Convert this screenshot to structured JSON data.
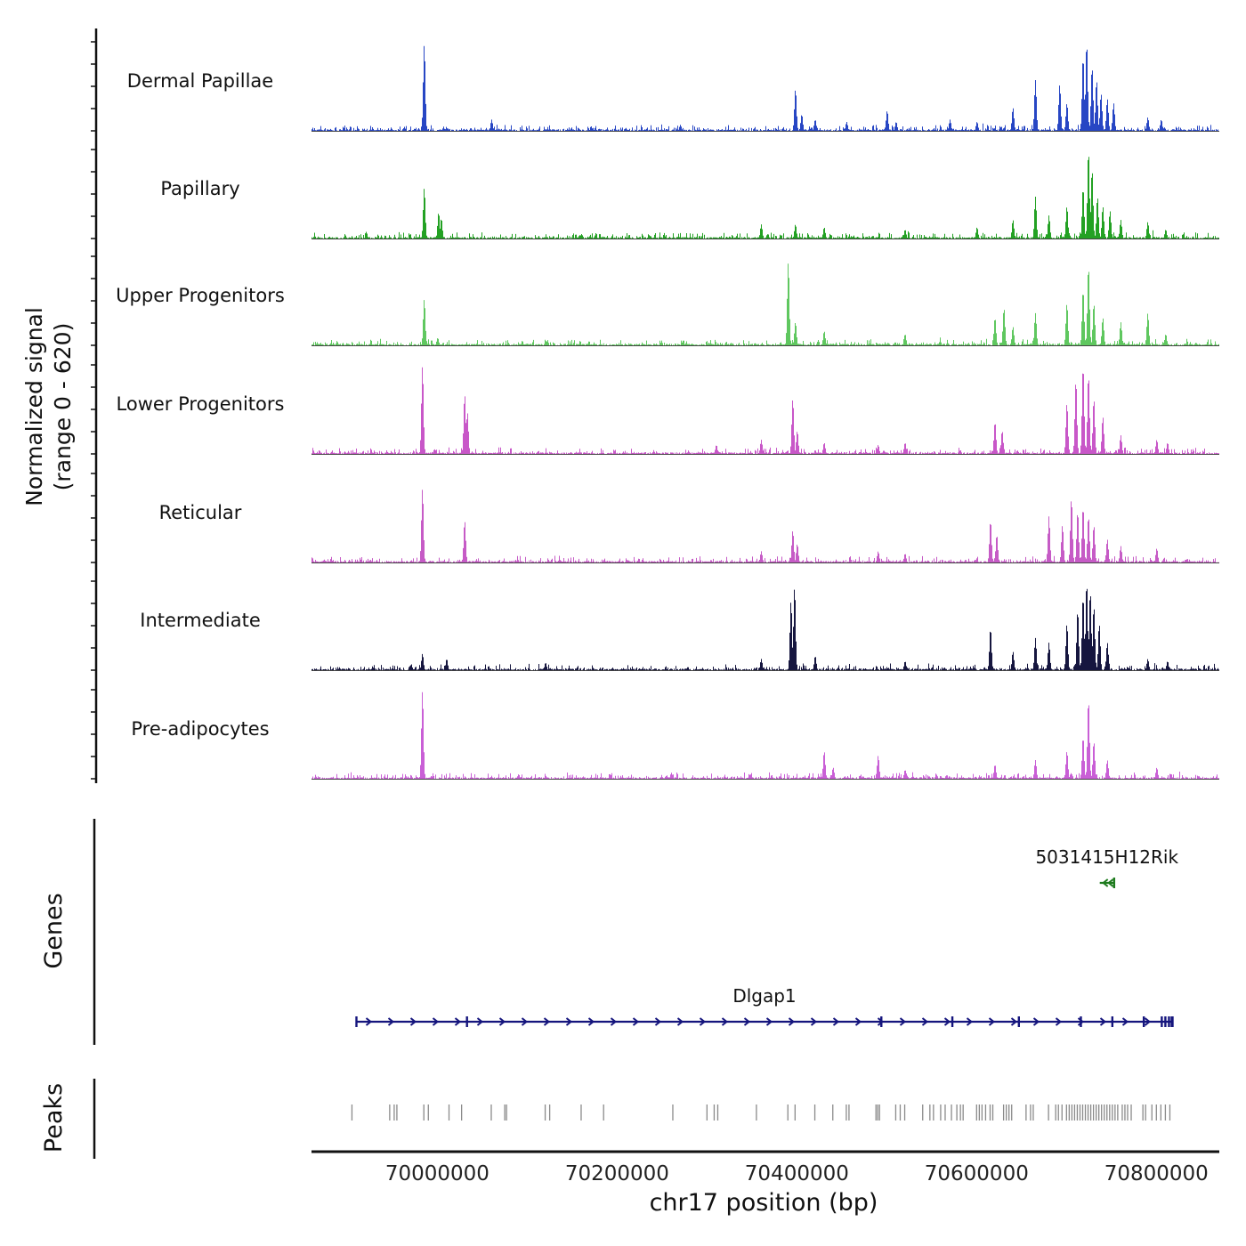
{
  "figure": {
    "y_axis_label_line1": "Normalized signal",
    "y_axis_label_line2": "(range 0 - 620)",
    "x_axis_title": "chr17 position (bp)",
    "genes_label": "Genes",
    "peaks_label": "Peaks"
  },
  "chart_data": {
    "type": "area",
    "title": "",
    "region": {
      "chrom": "chr17",
      "start": 69860000,
      "end": 70870000
    },
    "signal_range": [
      0,
      620
    ],
    "x_ticks": [
      70000000,
      70200000,
      70400000,
      70600000,
      70800000
    ],
    "tracks": [
      {
        "label": "Dermal Papillae",
        "color": "#2746c4",
        "peaks": [
          [
            69985000,
            580
          ],
          [
            70060000,
            75
          ],
          [
            70270000,
            40
          ],
          [
            70398000,
            280
          ],
          [
            70405000,
            110
          ],
          [
            70420000,
            75
          ],
          [
            70455000,
            60
          ],
          [
            70500000,
            135
          ],
          [
            70510000,
            60
          ],
          [
            70570000,
            75
          ],
          [
            70600000,
            60
          ],
          [
            70640000,
            155
          ],
          [
            70665000,
            340
          ],
          [
            70692000,
            310
          ],
          [
            70700000,
            185
          ],
          [
            70718000,
            495
          ],
          [
            70722000,
            590
          ],
          [
            70728000,
            430
          ],
          [
            70733000,
            340
          ],
          [
            70738000,
            250
          ],
          [
            70745000,
            215
          ],
          [
            70752000,
            185
          ],
          [
            70790000,
            90
          ],
          [
            70805000,
            75
          ]
        ]
      },
      {
        "label": "Papillary",
        "color": "#23a123",
        "peaks": [
          [
            69985000,
            340
          ],
          [
            70001000,
            175
          ],
          [
            70004000,
            135
          ],
          [
            70160000,
            30
          ],
          [
            70360000,
            95
          ],
          [
            70398000,
            95
          ],
          [
            70430000,
            75
          ],
          [
            70520000,
            60
          ],
          [
            70600000,
            75
          ],
          [
            70640000,
            125
          ],
          [
            70665000,
            280
          ],
          [
            70680000,
            155
          ],
          [
            70700000,
            215
          ],
          [
            70718000,
            340
          ],
          [
            70724000,
            590
          ],
          [
            70728000,
            465
          ],
          [
            70734000,
            280
          ],
          [
            70740000,
            215
          ],
          [
            70748000,
            185
          ],
          [
            70760000,
            125
          ],
          [
            70790000,
            110
          ],
          [
            70810000,
            60
          ]
        ]
      },
      {
        "label": "Upper Progenitors",
        "color": "#5fc75f",
        "peaks": [
          [
            69985000,
            310
          ],
          [
            70000000,
            50
          ],
          [
            70390000,
            560
          ],
          [
            70398000,
            155
          ],
          [
            70430000,
            95
          ],
          [
            70520000,
            75
          ],
          [
            70620000,
            185
          ],
          [
            70630000,
            250
          ],
          [
            70640000,
            125
          ],
          [
            70665000,
            215
          ],
          [
            70700000,
            280
          ],
          [
            70718000,
            370
          ],
          [
            70724000,
            530
          ],
          [
            70730000,
            280
          ],
          [
            70740000,
            185
          ],
          [
            70760000,
            155
          ],
          [
            70790000,
            215
          ],
          [
            70810000,
            75
          ]
        ]
      },
      {
        "label": "Lower Progenitors",
        "color": "#c857c8",
        "peaks": [
          [
            69983000,
            590
          ],
          [
            70030000,
            400
          ],
          [
            70033000,
            280
          ],
          [
            70310000,
            60
          ],
          [
            70360000,
            95
          ],
          [
            70395000,
            370
          ],
          [
            70400000,
            155
          ],
          [
            70430000,
            75
          ],
          [
            70490000,
            60
          ],
          [
            70520000,
            75
          ],
          [
            70620000,
            215
          ],
          [
            70628000,
            155
          ],
          [
            70700000,
            340
          ],
          [
            70710000,
            495
          ],
          [
            70718000,
            590
          ],
          [
            70724000,
            530
          ],
          [
            70730000,
            370
          ],
          [
            70740000,
            250
          ],
          [
            70760000,
            125
          ],
          [
            70800000,
            95
          ],
          [
            70812000,
            75
          ]
        ]
      },
      {
        "label": "Reticular",
        "color": "#c65bc6",
        "peaks": [
          [
            69983000,
            495
          ],
          [
            70030000,
            280
          ],
          [
            70360000,
            75
          ],
          [
            70395000,
            215
          ],
          [
            70400000,
            125
          ],
          [
            70490000,
            75
          ],
          [
            70520000,
            60
          ],
          [
            70615000,
            280
          ],
          [
            70622000,
            185
          ],
          [
            70680000,
            310
          ],
          [
            70695000,
            250
          ],
          [
            70705000,
            430
          ],
          [
            70712000,
            340
          ],
          [
            70718000,
            370
          ],
          [
            70724000,
            310
          ],
          [
            70730000,
            250
          ],
          [
            70745000,
            155
          ],
          [
            70760000,
            110
          ],
          [
            70800000,
            95
          ]
        ]
      },
      {
        "label": "Intermediate",
        "color": "#16163f",
        "peaks": [
          [
            69983000,
            110
          ],
          [
            70010000,
            75
          ],
          [
            70120000,
            50
          ],
          [
            70360000,
            75
          ],
          [
            70393000,
            465
          ],
          [
            70397000,
            560
          ],
          [
            70420000,
            95
          ],
          [
            70520000,
            60
          ],
          [
            70615000,
            280
          ],
          [
            70640000,
            125
          ],
          [
            70665000,
            215
          ],
          [
            70680000,
            185
          ],
          [
            70700000,
            310
          ],
          [
            70712000,
            400
          ],
          [
            70718000,
            495
          ],
          [
            70722000,
            590
          ],
          [
            70726000,
            530
          ],
          [
            70730000,
            430
          ],
          [
            70736000,
            310
          ],
          [
            70745000,
            185
          ],
          [
            70790000,
            75
          ],
          [
            70812000,
            60
          ]
        ]
      },
      {
        "label": "Pre-adipocytes",
        "color": "#c95fd6",
        "peaks": [
          [
            69983000,
            590
          ],
          [
            70090000,
            30
          ],
          [
            70260000,
            40
          ],
          [
            70430000,
            185
          ],
          [
            70440000,
            75
          ],
          [
            70490000,
            155
          ],
          [
            70520000,
            60
          ],
          [
            70620000,
            95
          ],
          [
            70665000,
            125
          ],
          [
            70700000,
            185
          ],
          [
            70718000,
            280
          ],
          [
            70724000,
            530
          ],
          [
            70730000,
            250
          ],
          [
            70745000,
            125
          ],
          [
            70800000,
            75
          ]
        ]
      }
    ],
    "genes": [
      {
        "name": "5031415H12Rik",
        "start": 70737000,
        "end": 70753000,
        "strand": "-",
        "color": "#1e7b1e",
        "exons": [
          70753000
        ]
      },
      {
        "name": "Dlgap1",
        "start": 69910000,
        "end": 70818000,
        "strand": "+",
        "color": "#15157d",
        "exons": [
          69910000,
          70033000,
          70494000,
          70573000,
          70647000,
          70716000,
          70751000,
          70786000,
          70806000,
          70810000,
          70814000,
          70817000,
          70818000
        ]
      }
    ],
    "peaks_track": [
      69905000,
      69947000,
      69952000,
      69955000,
      69985000,
      69990000,
      70013000,
      70027000,
      70060000,
      70075000,
      70077000,
      70120000,
      70125000,
      70160000,
      70185000,
      70262000,
      70300000,
      70308000,
      70312000,
      70355000,
      70390000,
      70398000,
      70420000,
      70440000,
      70455000,
      70458000,
      70488000,
      70490000,
      70492000,
      70510000,
      70515000,
      70520000,
      70540000,
      70548000,
      70552000,
      70560000,
      70565000,
      70572000,
      70578000,
      70582000,
      70585000,
      70600000,
      70603000,
      70606000,
      70610000,
      70615000,
      70618000,
      70630000,
      70633000,
      70636000,
      70639000,
      70655000,
      70660000,
      70663000,
      70680000,
      70688000,
      70691000,
      70695000,
      70700000,
      70703000,
      70706000,
      70709000,
      70712000,
      70715000,
      70718000,
      70721000,
      70724000,
      70727000,
      70730000,
      70733000,
      70736000,
      70739000,
      70742000,
      70745000,
      70748000,
      70751000,
      70754000,
      70757000,
      70762000,
      70765000,
      70768000,
      70772000,
      70785000,
      70788000,
      70795000,
      70800000,
      70805000,
      70810000,
      70815000
    ]
  }
}
